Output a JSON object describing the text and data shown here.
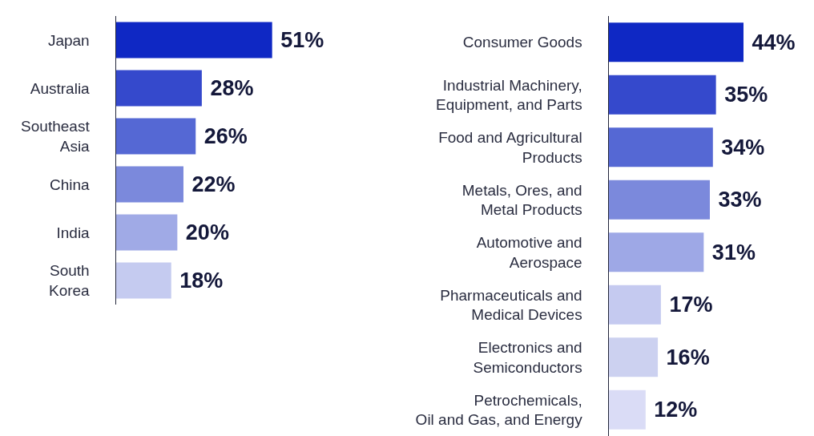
{
  "chart_data": [
    {
      "type": "bar",
      "orientation": "horizontal",
      "categories": [
        "Japan",
        "Australia",
        "Southeast\nAsia",
        "China",
        "India",
        "South\nKorea"
      ],
      "values": [
        51,
        28,
        26,
        22,
        20,
        18
      ],
      "value_labels": [
        "51%",
        "28%",
        "26%",
        "22%",
        "20%",
        "18%"
      ],
      "colors": [
        "#0f28c4",
        "#3549cc",
        "#5568d4",
        "#7b89dc",
        "#a0aae6",
        "#c5cbf0"
      ],
      "tick_labels": "y"
    },
    {
      "type": "bar",
      "orientation": "horizontal",
      "categories": [
        "Consumer Goods",
        "Industrial Machinery,\nEquipment, and Parts",
        "Food and Agricultural\nProducts",
        "Metals, Ores, and\nMetal Products",
        "Automotive and\nAerospace",
        "Pharmaceuticals and\nMedical Devices",
        "Electronics and\nSemiconductors",
        "Petrochemicals,\nOil and Gas, and Energy"
      ],
      "values": [
        44,
        35,
        34,
        33,
        31,
        17,
        16,
        12
      ],
      "value_labels": [
        "44%",
        "35%",
        "34%",
        "33%",
        "31%",
        "17%",
        "16%",
        "12%"
      ],
      "colors": [
        "#0f28c4",
        "#3549cc",
        "#5568d4",
        "#7b89dc",
        "#9ea8e6",
        "#c5caf0",
        "#ccd1f0",
        "#dadcf6"
      ],
      "tick_labels": "y"
    }
  ]
}
